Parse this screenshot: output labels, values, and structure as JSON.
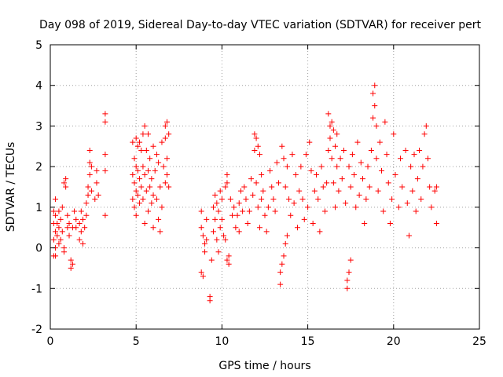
{
  "chart_data": {
    "type": "scatter",
    "title": "Day 098 of 2019, Sidereal Day-to-day VTEC variation (SDTVAR) for receiver pert",
    "xlabel": "GPS time / hours",
    "ylabel": "SDTVAR / TECUs",
    "xlim": [
      0,
      25
    ],
    "ylim": [
      -2,
      5
    ],
    "xticks": [
      0,
      5,
      10,
      15,
      20,
      25
    ],
    "yticks": [
      -2,
      -1,
      0,
      1,
      2,
      3,
      4,
      5
    ],
    "grid": true,
    "marker": "+",
    "color": "#ff0000",
    "series": [
      {
        "name": "SDTVAR",
        "points": [
          [
            0.2,
            -0.2
          ],
          [
            0.2,
            0.2
          ],
          [
            0.2,
            0.6
          ],
          [
            0.2,
            0.9
          ],
          [
            0.3,
            1.2
          ],
          [
            0.3,
            0.8
          ],
          [
            0.3,
            0.4
          ],
          [
            0.3,
            0.0
          ],
          [
            0.3,
            -0.2
          ],
          [
            0.4,
            0.3
          ],
          [
            0.4,
            0.6
          ],
          [
            0.5,
            0.9
          ],
          [
            0.5,
            0.5
          ],
          [
            0.5,
            0.1
          ],
          [
            0.6,
            0.2
          ],
          [
            0.6,
            0.7
          ],
          [
            0.7,
            1.0
          ],
          [
            0.7,
            0.4
          ],
          [
            0.8,
            0.0
          ],
          [
            0.8,
            -0.1
          ],
          [
            0.8,
            1.6
          ],
          [
            0.9,
            1.7
          ],
          [
            0.9,
            1.5
          ],
          [
            1.0,
            0.5
          ],
          [
            1.0,
            0.8
          ],
          [
            1.1,
            0.3
          ],
          [
            1.1,
            0.6
          ],
          [
            1.2,
            -0.3
          ],
          [
            1.2,
            -0.5
          ],
          [
            1.3,
            -0.4
          ],
          [
            1.3,
            0.5
          ],
          [
            1.4,
            0.9
          ],
          [
            1.5,
            0.7
          ],
          [
            1.5,
            0.5
          ],
          [
            1.7,
            0.2
          ],
          [
            1.7,
            0.6
          ],
          [
            1.8,
            0.9
          ],
          [
            1.8,
            0.4
          ],
          [
            1.9,
            0.7
          ],
          [
            1.9,
            0.1
          ],
          [
            2.0,
            0.5
          ],
          [
            2.1,
            0.8
          ],
          [
            2.1,
            1.1
          ],
          [
            2.2,
            1.5
          ],
          [
            2.2,
            1.3
          ],
          [
            2.3,
            1.8
          ],
          [
            2.3,
            2.1
          ],
          [
            2.3,
            2.4
          ],
          [
            2.4,
            2.0
          ],
          [
            2.4,
            1.4
          ],
          [
            2.6,
            1.2
          ],
          [
            2.7,
            1.6
          ],
          [
            2.7,
            1.9
          ],
          [
            2.8,
            1.3
          ],
          [
            3.2,
            3.3
          ],
          [
            3.2,
            3.1
          ],
          [
            3.2,
            2.3
          ],
          [
            3.2,
            1.9
          ],
          [
            3.2,
            0.8
          ],
          [
            4.8,
            2.6
          ],
          [
            4.8,
            1.8
          ],
          [
            4.8,
            1.2
          ],
          [
            4.9,
            2.2
          ],
          [
            4.9,
            1.6
          ],
          [
            4.9,
            1.0
          ],
          [
            5.0,
            2.7
          ],
          [
            5.0,
            2.0
          ],
          [
            5.0,
            1.4
          ],
          [
            5.0,
            0.8
          ],
          [
            5.1,
            2.5
          ],
          [
            5.1,
            1.9
          ],
          [
            5.1,
            1.3
          ],
          [
            5.2,
            2.6
          ],
          [
            5.2,
            1.7
          ],
          [
            5.2,
            1.1
          ],
          [
            5.3,
            2.4
          ],
          [
            5.3,
            1.5
          ],
          [
            5.4,
            2.8
          ],
          [
            5.4,
            2.0
          ],
          [
            5.4,
            1.2
          ],
          [
            5.5,
            3.0
          ],
          [
            5.5,
            1.8
          ],
          [
            5.5,
            0.6
          ],
          [
            5.6,
            2.4
          ],
          [
            5.6,
            1.4
          ],
          [
            5.7,
            2.8
          ],
          [
            5.7,
            1.9
          ],
          [
            5.7,
            0.9
          ],
          [
            5.8,
            2.2
          ],
          [
            5.8,
            1.5
          ],
          [
            5.9,
            1.7
          ],
          [
            5.9,
            1.1
          ],
          [
            6.0,
            2.5
          ],
          [
            6.0,
            1.3
          ],
          [
            6.0,
            0.5
          ],
          [
            6.1,
            1.9
          ],
          [
            6.2,
            2.3
          ],
          [
            6.2,
            1.2
          ],
          [
            6.3,
            0.7
          ],
          [
            6.3,
            2.1
          ],
          [
            6.4,
            1.5
          ],
          [
            6.4,
            0.4
          ],
          [
            6.5,
            2.6
          ],
          [
            6.5,
            1.0
          ],
          [
            6.6,
            2.0
          ],
          [
            6.7,
            3.0
          ],
          [
            6.7,
            2.7
          ],
          [
            6.7,
            1.6
          ],
          [
            6.8,
            3.1
          ],
          [
            6.8,
            2.2
          ],
          [
            6.8,
            1.8
          ],
          [
            6.9,
            2.8
          ],
          [
            6.9,
            1.5
          ],
          [
            8.8,
            0.9
          ],
          [
            8.8,
            0.5
          ],
          [
            8.8,
            -0.6
          ],
          [
            8.9,
            0.3
          ],
          [
            8.9,
            -0.7
          ],
          [
            9.0,
            0.1
          ],
          [
            9.0,
            -0.1
          ],
          [
            9.1,
            0.7
          ],
          [
            9.1,
            0.2
          ],
          [
            9.3,
            -1.3
          ],
          [
            9.3,
            -1.2
          ],
          [
            9.4,
            -0.3
          ],
          [
            9.5,
            0.4
          ],
          [
            9.5,
            1.0
          ],
          [
            9.6,
            0.7
          ],
          [
            9.6,
            1.3
          ],
          [
            9.7,
            0.2
          ],
          [
            9.7,
            1.1
          ],
          [
            9.8,
            -0.1
          ],
          [
            9.8,
            0.9
          ],
          [
            9.9,
            1.4
          ],
          [
            9.9,
            0.5
          ],
          [
            10.0,
            1.2
          ],
          [
            10.0,
            0.7
          ],
          [
            10.1,
            0.3
          ],
          [
            10.2,
            1.5
          ],
          [
            10.2,
            0.2
          ],
          [
            10.3,
            1.8
          ],
          [
            10.3,
            1.6
          ],
          [
            10.3,
            -0.3
          ],
          [
            10.4,
            -0.4
          ],
          [
            10.4,
            -0.2
          ],
          [
            10.5,
            1.2
          ],
          [
            10.6,
            0.8
          ],
          [
            10.7,
            1.0
          ],
          [
            10.8,
            0.5
          ],
          [
            10.9,
            0.8
          ],
          [
            11.0,
            0.4
          ],
          [
            11.0,
            1.1
          ],
          [
            11.1,
            1.4
          ],
          [
            11.2,
            0.9
          ],
          [
            11.3,
            1.5
          ],
          [
            11.4,
            1.2
          ],
          [
            11.5,
            0.6
          ],
          [
            11.6,
            0.9
          ],
          [
            11.7,
            1.7
          ],
          [
            11.8,
            1.3
          ],
          [
            11.9,
            2.8
          ],
          [
            11.9,
            2.4
          ],
          [
            12.0,
            2.7
          ],
          [
            12.0,
            1.6
          ],
          [
            12.1,
            2.5
          ],
          [
            12.1,
            1.0
          ],
          [
            12.2,
            2.3
          ],
          [
            12.2,
            0.5
          ],
          [
            12.3,
            1.8
          ],
          [
            12.3,
            1.2
          ],
          [
            12.4,
            1.4
          ],
          [
            12.5,
            0.8
          ],
          [
            12.6,
            0.4
          ],
          [
            12.7,
            1.0
          ],
          [
            12.8,
            1.9
          ],
          [
            12.9,
            1.5
          ],
          [
            13.0,
            1.2
          ],
          [
            13.1,
            0.9
          ],
          [
            13.2,
            2.1
          ],
          [
            13.3,
            1.6
          ],
          [
            13.4,
            -0.6
          ],
          [
            13.4,
            -0.9
          ],
          [
            13.5,
            -0.4
          ],
          [
            13.5,
            2.5
          ],
          [
            13.6,
            -0.2
          ],
          [
            13.6,
            2.2
          ],
          [
            13.7,
            0.1
          ],
          [
            13.7,
            1.5
          ],
          [
            13.8,
            0.3
          ],
          [
            13.8,
            2.0
          ],
          [
            13.9,
            1.2
          ],
          [
            14.0,
            0.8
          ],
          [
            14.1,
            2.3
          ],
          [
            14.2,
            1.1
          ],
          [
            14.3,
            1.8
          ],
          [
            14.4,
            0.5
          ],
          [
            14.5,
            1.4
          ],
          [
            14.6,
            2.0
          ],
          [
            14.7,
            1.2
          ],
          [
            14.8,
            0.7
          ],
          [
            14.9,
            2.3
          ],
          [
            15.0,
            1.0
          ],
          [
            15.1,
            2.6
          ],
          [
            15.2,
            1.9
          ],
          [
            15.3,
            0.6
          ],
          [
            15.4,
            1.4
          ],
          [
            15.5,
            1.8
          ],
          [
            15.6,
            1.2
          ],
          [
            15.7,
            0.4
          ],
          [
            15.8,
            2.0
          ],
          [
            15.9,
            1.5
          ],
          [
            16.0,
            0.9
          ],
          [
            16.1,
            1.6
          ],
          [
            16.2,
            2.4
          ],
          [
            16.2,
            3.3
          ],
          [
            16.3,
            3.0
          ],
          [
            16.3,
            2.7
          ],
          [
            16.4,
            3.1
          ],
          [
            16.4,
            2.2
          ],
          [
            16.5,
            2.9
          ],
          [
            16.5,
            1.6
          ],
          [
            16.6,
            2.5
          ],
          [
            16.6,
            1.0
          ],
          [
            16.7,
            2.8
          ],
          [
            16.7,
            2.0
          ],
          [
            16.8,
            1.4
          ],
          [
            16.9,
            2.2
          ],
          [
            17.0,
            1.7
          ],
          [
            17.1,
            2.4
          ],
          [
            17.2,
            1.1
          ],
          [
            17.3,
            -1.0
          ],
          [
            17.3,
            -0.8
          ],
          [
            17.4,
            -0.6
          ],
          [
            17.4,
            2.0
          ],
          [
            17.5,
            -0.3
          ],
          [
            17.5,
            1.5
          ],
          [
            17.6,
            2.3
          ],
          [
            17.7,
            1.8
          ],
          [
            17.8,
            1.0
          ],
          [
            17.9,
            2.6
          ],
          [
            18.0,
            1.3
          ],
          [
            18.1,
            2.1
          ],
          [
            18.2,
            1.7
          ],
          [
            18.3,
            0.6
          ],
          [
            18.4,
            1.2
          ],
          [
            18.5,
            2.0
          ],
          [
            18.6,
            1.5
          ],
          [
            18.7,
            2.4
          ],
          [
            18.8,
            3.2
          ],
          [
            18.8,
            3.8
          ],
          [
            18.9,
            3.5
          ],
          [
            18.9,
            4.0
          ],
          [
            19.0,
            3.0
          ],
          [
            19.0,
            2.2
          ],
          [
            19.1,
            1.4
          ],
          [
            19.2,
            2.6
          ],
          [
            19.3,
            1.9
          ],
          [
            19.4,
            0.9
          ],
          [
            19.5,
            3.1
          ],
          [
            19.6,
            2.3
          ],
          [
            19.7,
            1.6
          ],
          [
            19.8,
            0.6
          ],
          [
            19.9,
            1.2
          ],
          [
            20.0,
            2.8
          ],
          [
            20.1,
            1.8
          ],
          [
            20.3,
            1.0
          ],
          [
            20.4,
            2.2
          ],
          [
            20.5,
            1.5
          ],
          [
            20.7,
            2.4
          ],
          [
            20.8,
            1.1
          ],
          [
            20.9,
            0.3
          ],
          [
            21.0,
            2.0
          ],
          [
            21.1,
            1.4
          ],
          [
            21.2,
            2.3
          ],
          [
            21.3,
            0.9
          ],
          [
            21.4,
            1.7
          ],
          [
            21.5,
            2.4
          ],
          [
            21.6,
            1.2
          ],
          [
            21.7,
            2.0
          ],
          [
            21.8,
            2.8
          ],
          [
            21.9,
            3.0
          ],
          [
            22.0,
            2.2
          ],
          [
            22.1,
            1.5
          ],
          [
            22.2,
            1.0
          ],
          [
            22.4,
            1.4
          ],
          [
            22.5,
            0.6
          ],
          [
            22.5,
            1.5
          ]
        ]
      }
    ]
  }
}
